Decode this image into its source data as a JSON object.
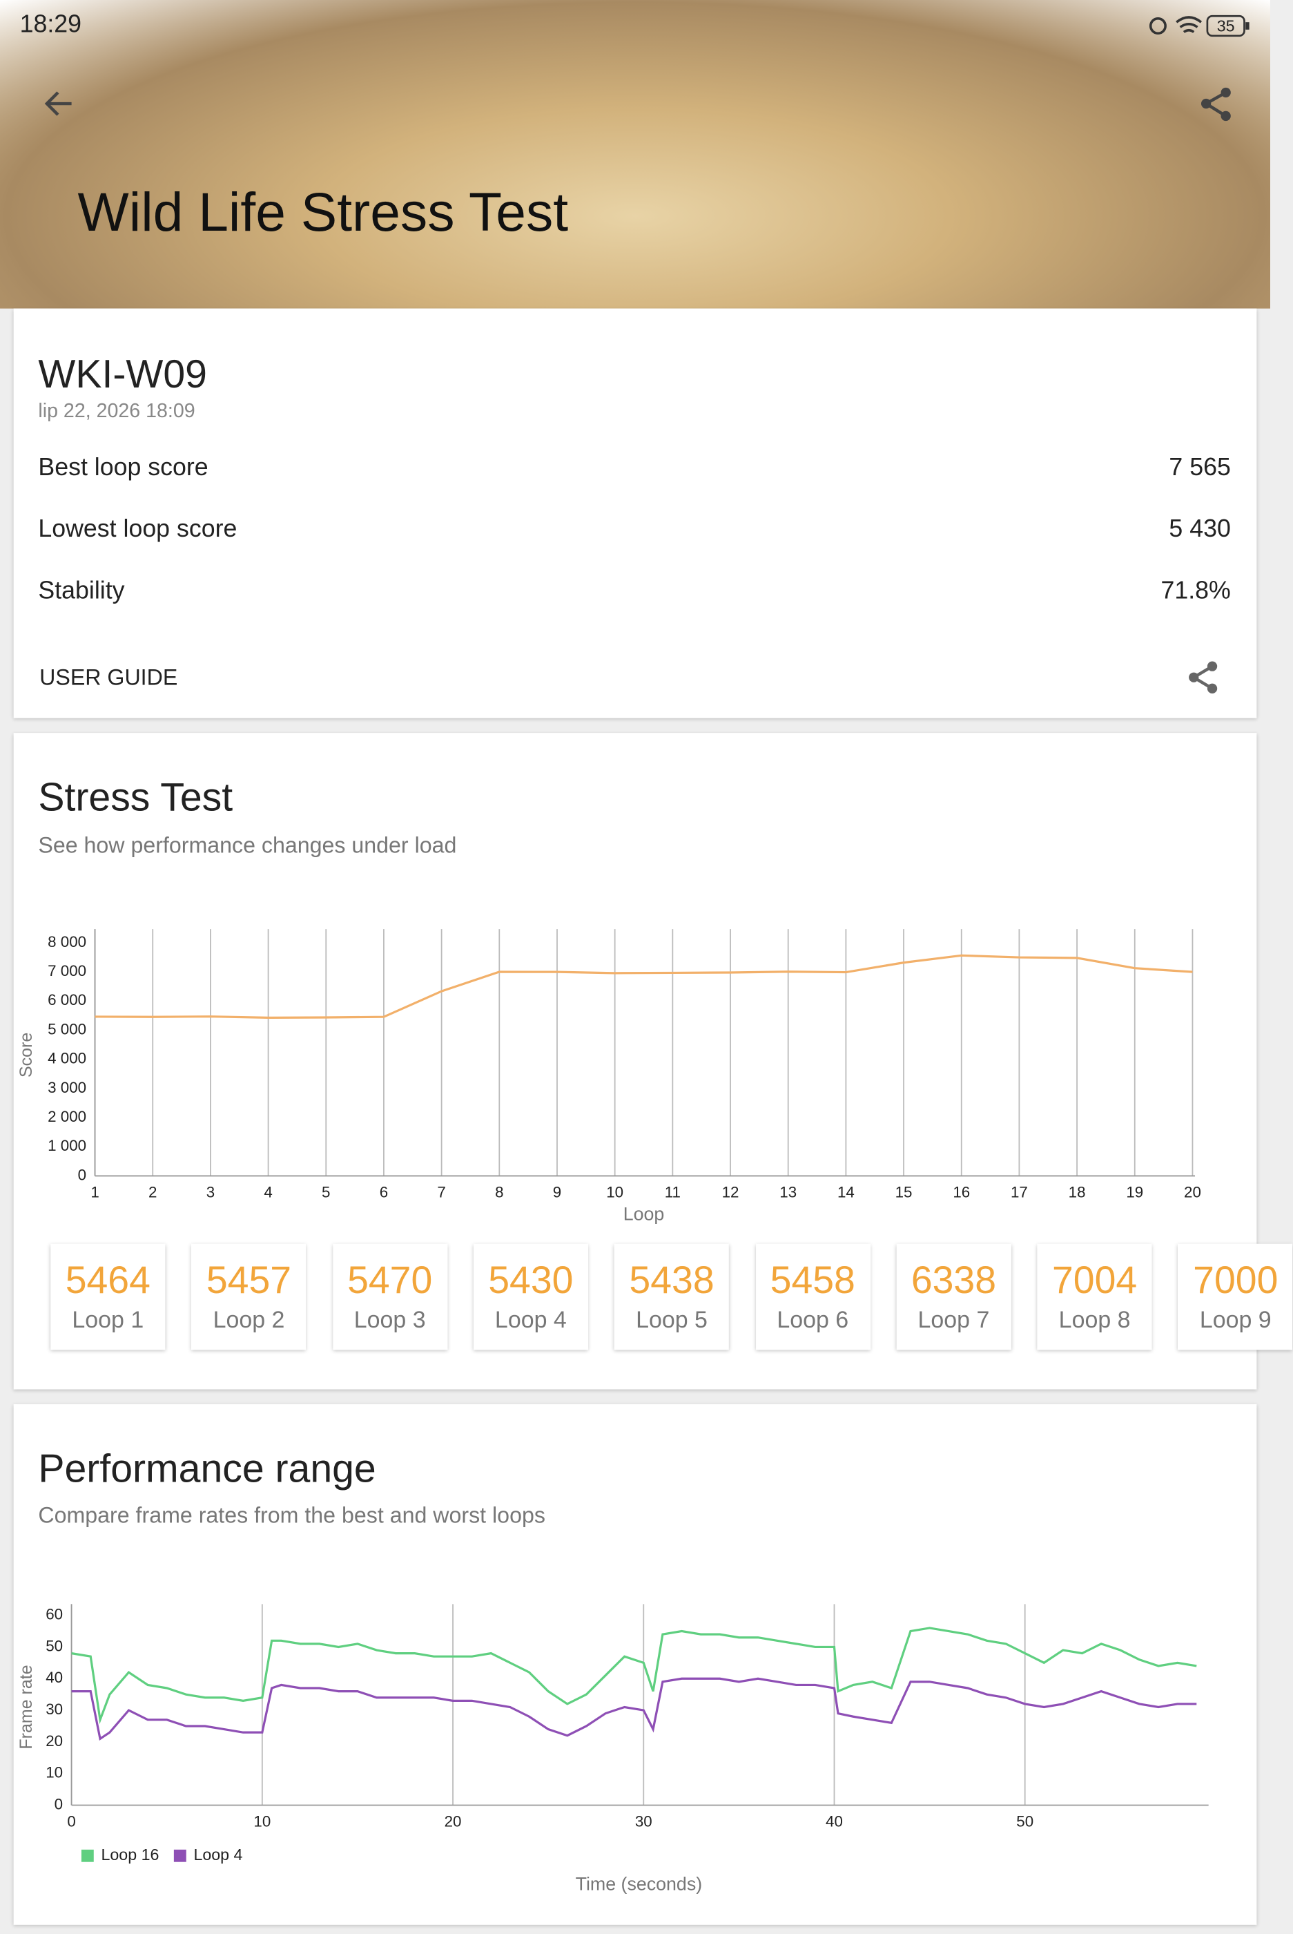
{
  "status_bar": {
    "time": "18:29",
    "battery": "35"
  },
  "header": {
    "title": "Wild Life Stress Test"
  },
  "summary": {
    "device": "WKI-W09",
    "date": "lip 22, 2026 18:09",
    "rows": [
      {
        "label": "Best loop score",
        "value": "7 565"
      },
      {
        "label": "Lowest loop score",
        "value": "5 430"
      },
      {
        "label": "Stability",
        "value": "71.8%"
      }
    ],
    "user_guide": "USER GUIDE"
  },
  "stress_test": {
    "title": "Stress Test",
    "subtitle": "See how performance changes under load",
    "loop_labels": [
      "Loop 1",
      "Loop 2",
      "Loop 3",
      "Loop 4",
      "Loop 5",
      "Loop 6",
      "Loop 7",
      "Loop 8",
      "Loop 9"
    ],
    "chart_data": {
      "type": "line",
      "y_label": "Score",
      "x_label": "Loop",
      "x": [
        1,
        2,
        3,
        4,
        5,
        6,
        7,
        8,
        9,
        10,
        11,
        12,
        13,
        14,
        15,
        16,
        17,
        18,
        19,
        20
      ],
      "values": [
        5464,
        5457,
        5470,
        5430,
        5438,
        5458,
        6338,
        7004,
        7000,
        6960,
        6970,
        6980,
        7010,
        6990,
        7320,
        7565,
        7500,
        7480,
        7130,
        7000
      ],
      "color": "#f2b06a",
      "xlim": [
        1,
        20
      ],
      "xticks": [
        1,
        2,
        3,
        4,
        5,
        6,
        7,
        8,
        9,
        10,
        11,
        12,
        13,
        14,
        15,
        16,
        17,
        18,
        19,
        20
      ],
      "ylim": [
        0,
        8300
      ],
      "yticks": [
        0,
        {
          "value": 1000,
          "label": "1 000"
        },
        {
          "value": 2000,
          "label": "2 000"
        },
        {
          "value": 3000,
          "label": "3 000"
        },
        {
          "value": 4000,
          "label": "4 000"
        },
        {
          "value": 5000,
          "label": "5 000"
        },
        {
          "value": 6000,
          "label": "6 000"
        },
        {
          "value": 7000,
          "label": "7 000"
        },
        {
          "value": 8000,
          "label": "8 000"
        }
      ],
      "grid": "x"
    }
  },
  "performance_range": {
    "title": "Performance range",
    "subtitle": "Compare frame rates from the best and worst loops",
    "chart_data": {
      "type": "line",
      "y_label": "Frame rate",
      "x_label": "Time (seconds)",
      "x": [
        0,
        1,
        1.5,
        2,
        3,
        4,
        5,
        6,
        7,
        8,
        9,
        10,
        10.5,
        11,
        12,
        13,
        14,
        15,
        16,
        17,
        18,
        19,
        20,
        21,
        22,
        23,
        24,
        25,
        26,
        27,
        28,
        29,
        30,
        30.5,
        31,
        32,
        33,
        34,
        35,
        36,
        37,
        38,
        39,
        40,
        40.2,
        41,
        42,
        43,
        44,
        45,
        46,
        47,
        48,
        49,
        50,
        51,
        52,
        53,
        54,
        55,
        56,
        57,
        58,
        59
      ],
      "series": [
        {
          "name": "Loop 16",
          "color": "#5fcf80",
          "values": [
            48,
            47,
            27,
            35,
            42,
            38,
            37,
            35,
            34,
            34,
            33,
            34,
            52,
            52,
            51,
            51,
            50,
            51,
            49,
            48,
            48,
            47,
            47,
            47,
            48,
            45,
            42,
            36,
            32,
            35,
            41,
            47,
            45,
            36,
            54,
            55,
            54,
            54,
            53,
            53,
            52,
            51,
            50,
            50,
            36,
            38,
            39,
            37,
            55,
            56,
            55,
            54,
            52,
            51,
            48,
            45,
            49,
            48,
            51,
            49,
            46,
            44,
            45,
            44
          ]
        },
        {
          "name": "Loop 4",
          "color": "#8e4fb5",
          "values": [
            36,
            36,
            21,
            23,
            30,
            27,
            27,
            25,
            25,
            24,
            23,
            23,
            37,
            38,
            37,
            37,
            36,
            36,
            34,
            34,
            34,
            34,
            33,
            33,
            32,
            31,
            28,
            24,
            22,
            25,
            29,
            31,
            30,
            24,
            39,
            40,
            40,
            40,
            39,
            40,
            39,
            38,
            38,
            37,
            29,
            28,
            27,
            26,
            39,
            39,
            38,
            37,
            35,
            34,
            32,
            31,
            32,
            34,
            36,
            34,
            32,
            31,
            32,
            32
          ]
        }
      ],
      "xlim": [
        0,
        59.5
      ],
      "xticks": [
        0,
        10,
        20,
        30,
        40,
        50
      ],
      "ylim": [
        0,
        62
      ],
      "yticks": [
        0,
        10,
        20,
        30,
        40,
        50,
        60
      ],
      "grid": "x",
      "legend": "bottom-left"
    }
  }
}
